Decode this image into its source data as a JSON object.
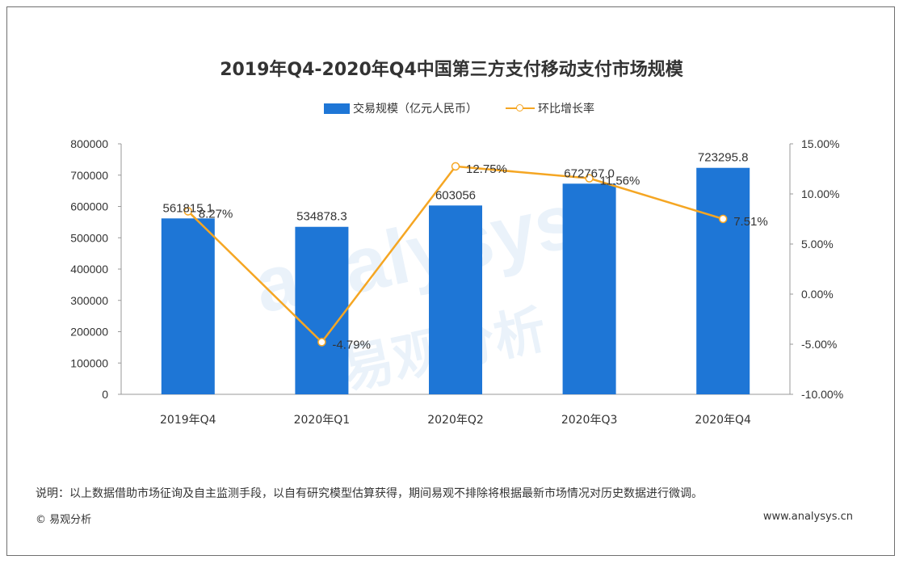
{
  "chart_data": {
    "type": "bar",
    "title": "2019年Q4-2020年Q4中国第三方支付移动支付市场规模",
    "categories": [
      "2019年Q4",
      "2020年Q1",
      "2020年Q2",
      "2020年Q3",
      "2020年Q4"
    ],
    "series": [
      {
        "name": "交易规模（亿元人民币）",
        "type": "bar",
        "axis": "left",
        "values": [
          561815.1,
          534878.3,
          603056,
          672767.0,
          723295.8
        ],
        "labels": [
          "561815.1",
          "534878.3",
          "603056",
          "672767.0",
          "723295.8"
        ]
      },
      {
        "name": "环比增长率",
        "type": "line",
        "axis": "right",
        "values": [
          8.27,
          -4.79,
          12.75,
          11.56,
          7.51
        ],
        "labels": [
          "8.27%",
          "-4.79%",
          "12.75%",
          "11.56%",
          "7.51%"
        ]
      }
    ],
    "ylim_left": [
      0,
      800000
    ],
    "yticks_left": [
      "0",
      "100000",
      "200000",
      "300000",
      "400000",
      "500000",
      "600000",
      "700000",
      "800000"
    ],
    "ylim_right": [
      -10,
      15
    ],
    "yticks_right": [
      "-10.00%",
      "-5.00%",
      "0.00%",
      "5.00%",
      "10.00%",
      "15.00%"
    ],
    "legend_position": "top",
    "grid": false
  },
  "footer": {
    "note": "说明：以上数据借助市场征询及自主监测手段，以自有研究模型估算获得，期间易观不排除将根据最新市场情况对历史数据进行微调。",
    "copyright": "© 易观分析",
    "website": "www.analysys.cn"
  },
  "watermark": {
    "latin": "analysys",
    "cjk": "易观分析"
  },
  "colors": {
    "bar": "#1e76d6",
    "line": "#f5a623",
    "axis": "#999999",
    "text": "#333333"
  }
}
